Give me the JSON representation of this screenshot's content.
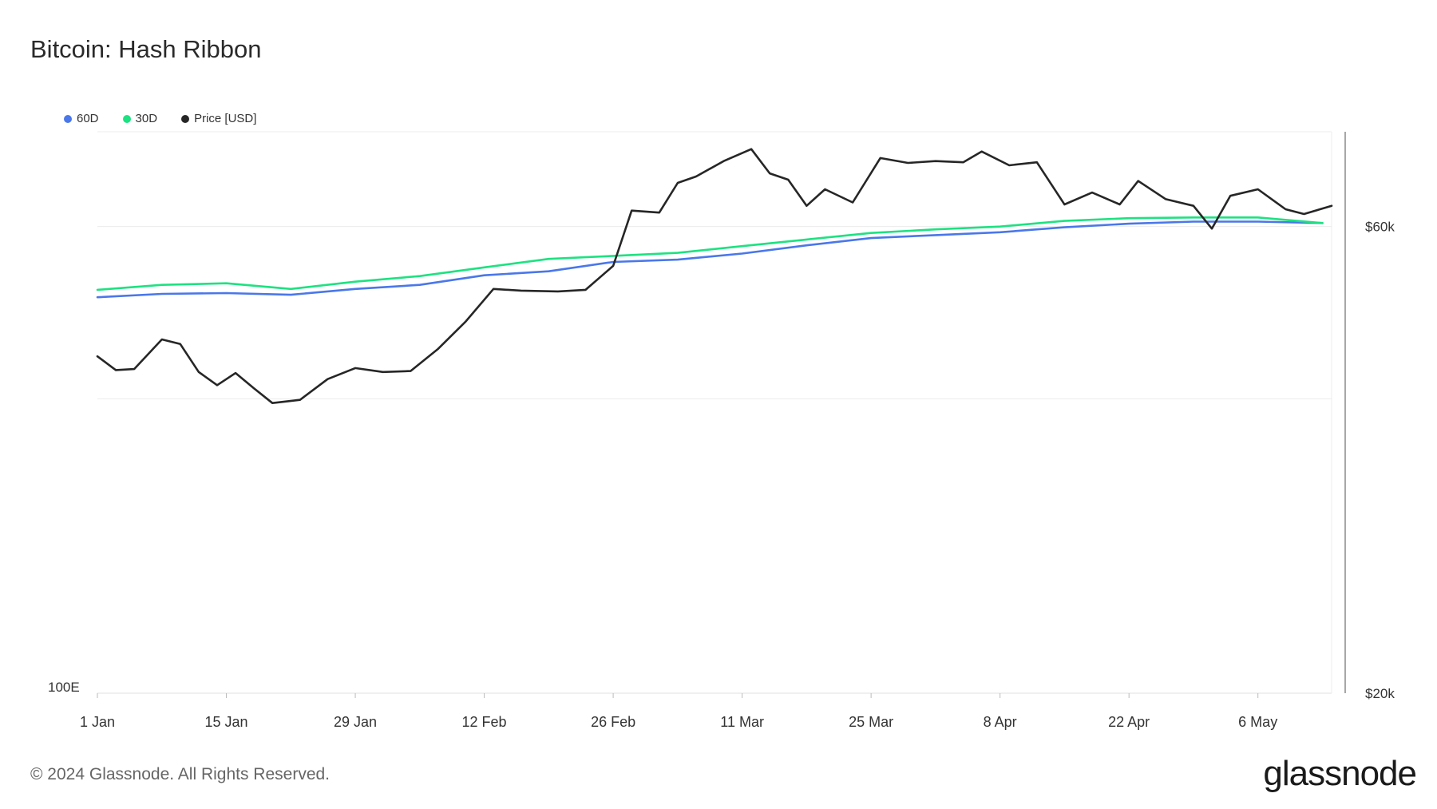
{
  "title": "Bitcoin: Hash Ribbon",
  "footer": "© 2024 Glassnode. All Rights Reserved.",
  "logo": "glassnode",
  "legend": [
    {
      "label": "60D",
      "color": "#4a77ea"
    },
    {
      "label": "30D",
      "color": "#1de281"
    },
    {
      "label": "Price [USD]",
      "color": "#262626"
    }
  ],
  "chart_data": {
    "type": "line",
    "title": "Bitcoin: Hash Ribbon",
    "x_axis": {
      "tick_labels": [
        "1 Jan",
        "15 Jan",
        "29 Jan",
        "12 Feb",
        "26 Feb",
        "11 Mar",
        "25 Mar",
        "8 Apr",
        "22 Apr",
        "6 May"
      ],
      "range": [
        "1 Jan",
        "14 May"
      ]
    },
    "y_left": {
      "scale": "log",
      "tick_label": "100E"
    },
    "y_right": {
      "scale": "log",
      "tick_labels": [
        "$60k",
        "$20k"
      ],
      "range": [
        20000,
        75000
      ]
    },
    "grid": "horizontal",
    "legend_position": "top-left",
    "series": [
      {
        "name": "60D",
        "color": "#4a77ea",
        "axis": "right",
        "x": [
          "1 Jan",
          "8 Jan",
          "15 Jan",
          "22 Jan",
          "29 Jan",
          "5 Feb",
          "12 Feb",
          "19 Feb",
          "26 Feb",
          "4 Mar",
          "11 Mar",
          "18 Mar",
          "25 Mar",
          "1 Apr",
          "8 Apr",
          "15 Apr",
          "22 Apr",
          "29 Apr",
          "6 May",
          "13 May"
        ],
        "y": [
          50800,
          51200,
          51300,
          51100,
          51800,
          52300,
          53500,
          54000,
          55200,
          55500,
          56300,
          57400,
          58400,
          58800,
          59200,
          59900,
          60400,
          60700,
          60700,
          60500
        ]
      },
      {
        "name": "30D",
        "color": "#1de281",
        "axis": "right",
        "x": [
          "1 Jan",
          "8 Jan",
          "15 Jan",
          "22 Jan",
          "29 Jan",
          "5 Feb",
          "12 Feb",
          "19 Feb",
          "26 Feb",
          "4 Mar",
          "11 Mar",
          "18 Mar",
          "25 Mar",
          "1 Apr",
          "8 Apr",
          "15 Apr",
          "22 Apr",
          "29 Apr",
          "6 May",
          "13 May"
        ],
        "y": [
          51700,
          52300,
          52500,
          51800,
          52700,
          53400,
          54500,
          55600,
          56000,
          56400,
          57300,
          58200,
          59100,
          59600,
          60000,
          60800,
          61200,
          61300,
          61300,
          60500
        ]
      },
      {
        "name": "Price [USD]",
        "color": "#262626",
        "axis": "right",
        "x": [
          "1 Jan",
          "3 Jan",
          "5 Jan",
          "8 Jan",
          "10 Jan",
          "12 Jan",
          "14 Jan",
          "16 Jan",
          "18 Jan",
          "20 Jan",
          "23 Jan",
          "26 Jan",
          "29 Jan",
          "1 Feb",
          "4 Feb",
          "7 Feb",
          "10 Feb",
          "13 Feb",
          "16 Feb",
          "20 Feb",
          "23 Feb",
          "26 Feb",
          "28 Feb",
          "2 Mar",
          "4 Mar",
          "6 Mar",
          "9 Mar",
          "12 Mar",
          "14 Mar",
          "16 Mar",
          "18 Mar",
          "20 Mar",
          "23 Mar",
          "26 Mar",
          "29 Mar",
          "1 Apr",
          "4 Apr",
          "6 Apr",
          "9 Apr",
          "12 Apr",
          "15 Apr",
          "18 Apr",
          "21 Apr",
          "23 Apr",
          "26 Apr",
          "29 Apr",
          "1 May",
          "3 May",
          "6 May",
          "9 May",
          "11 May",
          "14 May"
        ],
        "y": [
          44200,
          42800,
          42900,
          46000,
          45500,
          42600,
          41300,
          42500,
          41000,
          39600,
          39900,
          41900,
          43000,
          42600,
          42700,
          45000,
          48000,
          51800,
          51600,
          51500,
          51700,
          54700,
          62300,
          62000,
          66500,
          67500,
          70000,
          72000,
          68000,
          67000,
          63000,
          65500,
          63500,
          70500,
          69700,
          70000,
          69800,
          71600,
          69300,
          69800,
          63200,
          65000,
          63200,
          66800,
          64000,
          63000,
          59700,
          64500,
          65500,
          62500,
          61800,
          63000
        ]
      }
    ]
  }
}
